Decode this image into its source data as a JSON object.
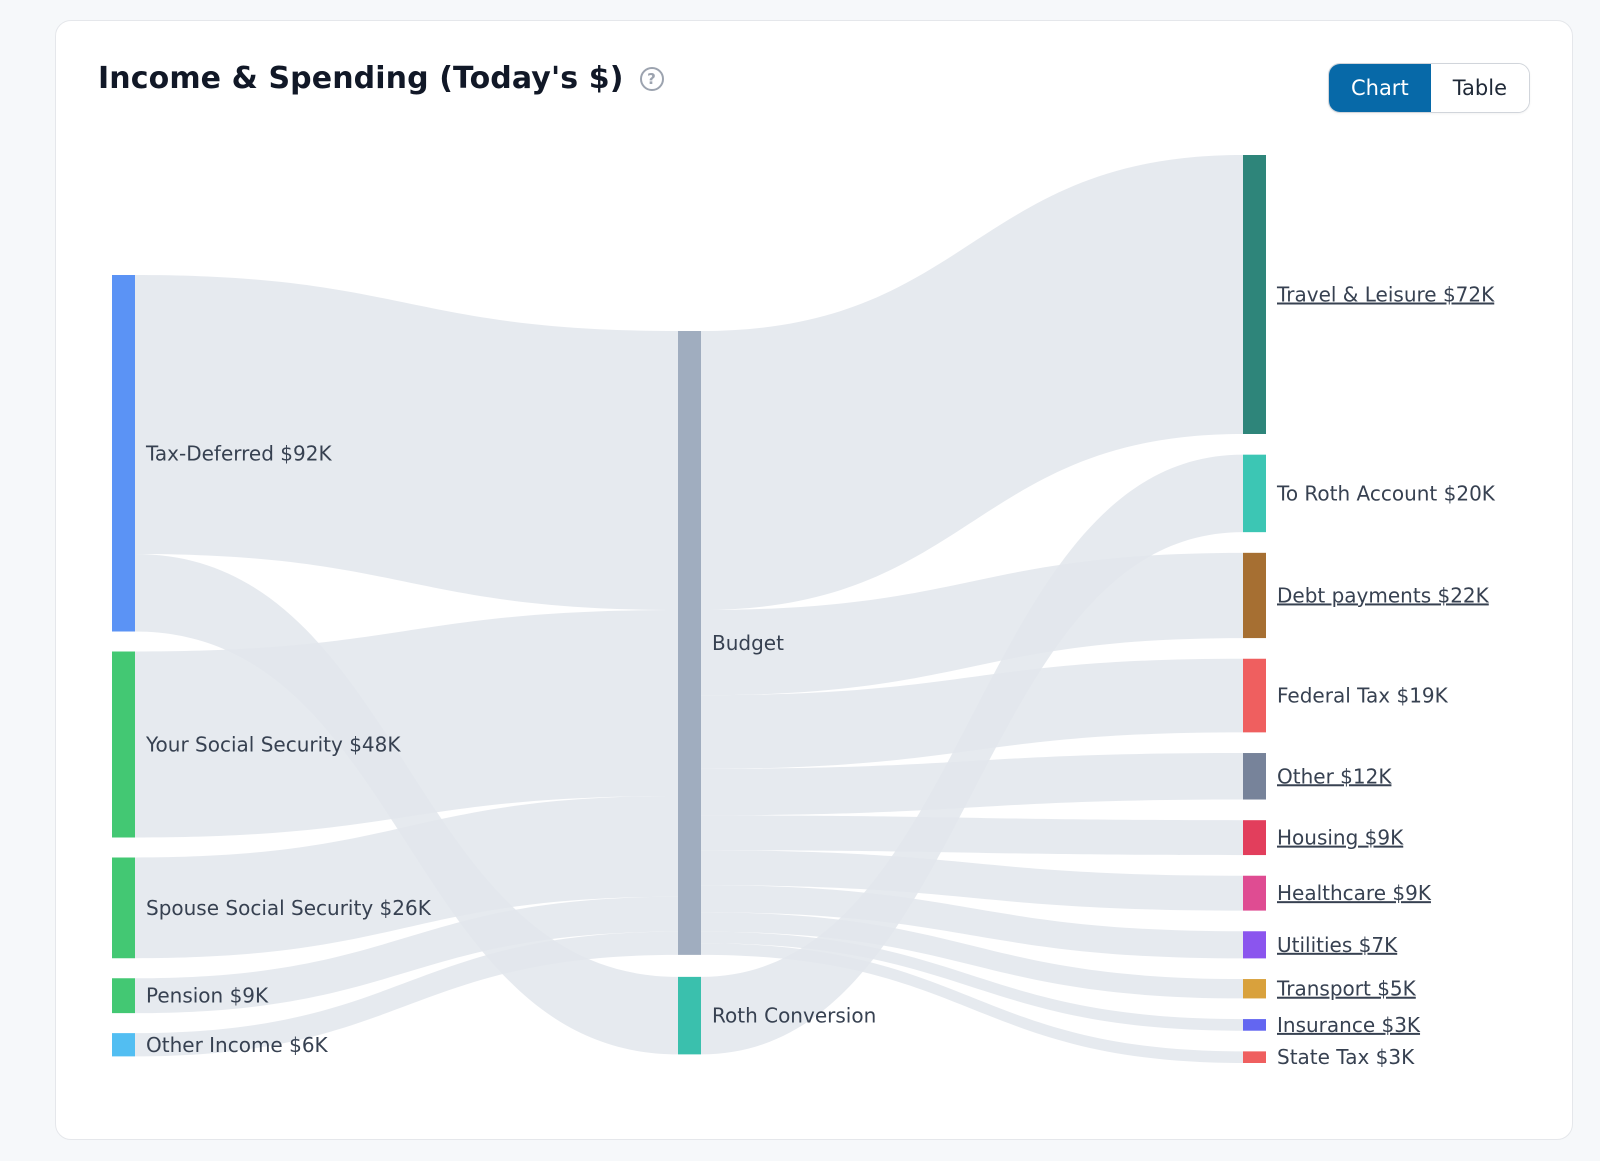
{
  "title": "Income & Spending (Today's $)",
  "help_icon": "question-circle-icon",
  "view_toggle": {
    "options": [
      "Chart",
      "Table"
    ],
    "selected": "Chart",
    "accent": "#0769a8"
  },
  "chart_data": {
    "type": "sankey",
    "title": "Income & Spending (Today's $)",
    "nodes": [
      {
        "id": "tax_deferred",
        "label": "Tax-Deferred $92K",
        "value": 92,
        "column": 0,
        "color": "#5b93f5"
      },
      {
        "id": "your_ss",
        "label": "Your Social Security $48K",
        "value": 48,
        "column": 0,
        "color": "#43c873"
      },
      {
        "id": "spouse_ss",
        "label": "Spouse Social Security $26K",
        "value": 26,
        "column": 0,
        "color": "#43c873"
      },
      {
        "id": "pension",
        "label": "Pension $9K",
        "value": 9,
        "column": 0,
        "color": "#43c873"
      },
      {
        "id": "other_income",
        "label": "Other Income $6K",
        "value": 6,
        "column": 0,
        "color": "#52bef2"
      },
      {
        "id": "budget",
        "label": "Budget",
        "value": 161,
        "column": 1,
        "color": "#a0adbf"
      },
      {
        "id": "roth_conv",
        "label": "Roth Conversion",
        "value": 20,
        "column": 1,
        "color": "#3ac0ad"
      },
      {
        "id": "travel",
        "label": "Travel & Leisure $72K",
        "value": 72,
        "column": 2,
        "color": "#2e857a",
        "dotted": true
      },
      {
        "id": "roth_acct",
        "label": "To Roth Account $20K",
        "value": 20,
        "column": 2,
        "color": "#3cc6b4"
      },
      {
        "id": "debt",
        "label": "Debt payments $22K",
        "value": 22,
        "column": 2,
        "color": "#a66f32",
        "dotted": true
      },
      {
        "id": "fed_tax",
        "label": "Federal Tax $19K",
        "value": 19,
        "column": 2,
        "color": "#ef5f5f"
      },
      {
        "id": "other",
        "label": "Other $12K",
        "value": 12,
        "column": 2,
        "color": "#77839a",
        "dotted": true
      },
      {
        "id": "housing",
        "label": "Housing $9K",
        "value": 9,
        "column": 2,
        "color": "#e23e5c",
        "dotted": true
      },
      {
        "id": "healthcare",
        "label": "Healthcare $9K",
        "value": 9,
        "column": 2,
        "color": "#df4c92",
        "dotted": true
      },
      {
        "id": "utilities",
        "label": "Utilities $7K",
        "value": 7,
        "column": 2,
        "color": "#8b55ee",
        "dotted": true
      },
      {
        "id": "transport",
        "label": "Transport $5K",
        "value": 5,
        "column": 2,
        "color": "#d9a13c",
        "dotted": true
      },
      {
        "id": "insurance",
        "label": "Insurance $3K",
        "value": 3,
        "column": 2,
        "color": "#6366f1",
        "dotted": true
      },
      {
        "id": "state_tax",
        "label": "State Tax $3K",
        "value": 3,
        "column": 2,
        "color": "#ef5f5f"
      }
    ],
    "links": [
      {
        "source": "tax_deferred",
        "target": "budget",
        "value": 72
      },
      {
        "source": "tax_deferred",
        "target": "roth_conv",
        "value": 20
      },
      {
        "source": "your_ss",
        "target": "budget",
        "value": 48
      },
      {
        "source": "spouse_ss",
        "target": "budget",
        "value": 26
      },
      {
        "source": "pension",
        "target": "budget",
        "value": 9
      },
      {
        "source": "other_income",
        "target": "budget",
        "value": 6
      },
      {
        "source": "budget",
        "target": "travel",
        "value": 72
      },
      {
        "source": "budget",
        "target": "debt",
        "value": 22
      },
      {
        "source": "budget",
        "target": "fed_tax",
        "value": 19
      },
      {
        "source": "budget",
        "target": "other",
        "value": 12
      },
      {
        "source": "budget",
        "target": "housing",
        "value": 9
      },
      {
        "source": "budget",
        "target": "healthcare",
        "value": 9
      },
      {
        "source": "budget",
        "target": "utilities",
        "value": 7
      },
      {
        "source": "budget",
        "target": "transport",
        "value": 5
      },
      {
        "source": "budget",
        "target": "insurance",
        "value": 3
      },
      {
        "source": "budget",
        "target": "state_tax",
        "value": 3
      },
      {
        "source": "roth_conv",
        "target": "roth_acct",
        "value": 20
      }
    ],
    "link_color": "#e2e6ec"
  }
}
